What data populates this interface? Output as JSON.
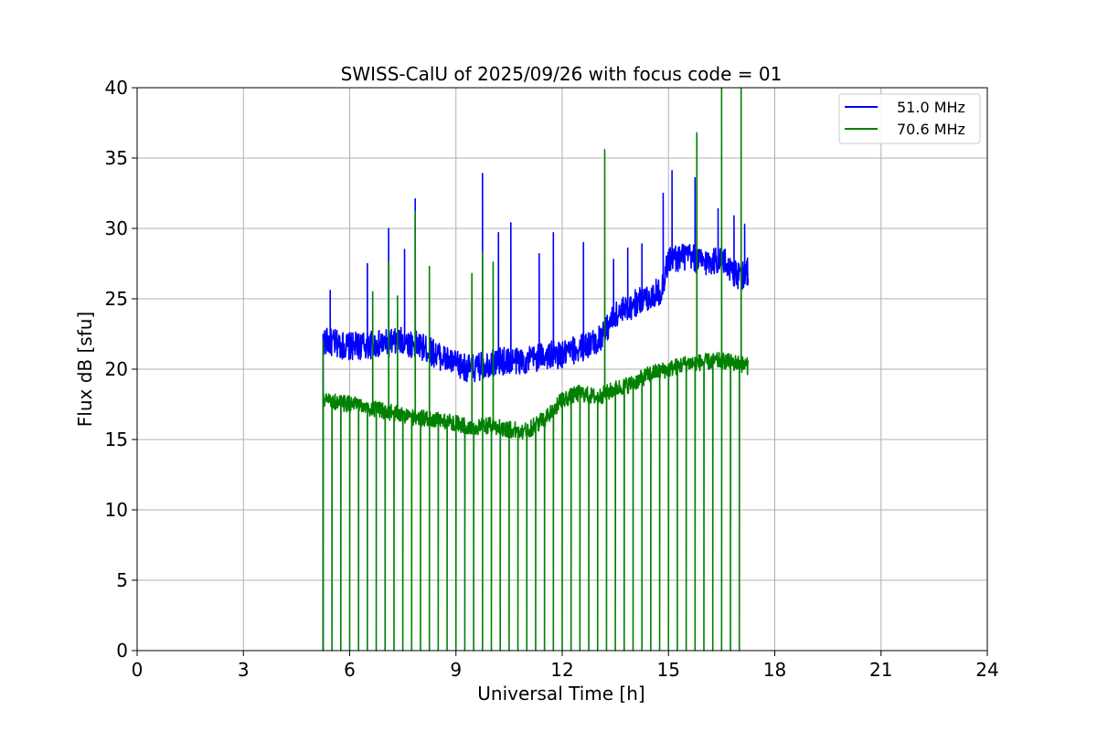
{
  "chart_data": {
    "type": "line",
    "title": "SWISS-CalU of 2025/09/26 with focus code = 01",
    "xlabel": "Universal Time [h]",
    "ylabel": "Flux dB [sfu]",
    "xlim": [
      0,
      24
    ],
    "ylim": [
      0,
      40
    ],
    "xticks": [
      0,
      3,
      6,
      9,
      12,
      15,
      18,
      21,
      24
    ],
    "yticks": [
      0,
      5,
      10,
      15,
      20,
      25,
      30,
      35,
      40
    ],
    "xtick_labels": [
      "0",
      "3",
      "6",
      "9",
      "12",
      "15",
      "18",
      "21",
      "24"
    ],
    "ytick_labels": [
      "0",
      "5",
      "10",
      "15",
      "20",
      "25",
      "30",
      "35",
      "40"
    ],
    "grid": true,
    "legend_position": "top-right",
    "series": [
      {
        "name": "51.0 MHz",
        "color": "#0000ff",
        "baseline": [
          [
            5.25,
            22.0
          ],
          [
            6.0,
            21.6
          ],
          [
            7.0,
            21.8
          ],
          [
            7.5,
            22.0
          ],
          [
            8.0,
            21.6
          ],
          [
            8.5,
            21.0
          ],
          [
            9.0,
            20.3
          ],
          [
            9.5,
            20.0
          ],
          [
            10.0,
            20.5
          ],
          [
            10.5,
            20.6
          ],
          [
            11.0,
            20.6
          ],
          [
            11.5,
            21.0
          ],
          [
            12.0,
            21.0
          ],
          [
            12.5,
            21.5
          ],
          [
            13.0,
            22.0
          ],
          [
            13.5,
            23.8
          ],
          [
            14.0,
            24.6
          ],
          [
            14.5,
            25.2
          ],
          [
            14.8,
            25.6
          ],
          [
            15.0,
            27.8
          ],
          [
            15.5,
            28.0
          ],
          [
            16.0,
            27.6
          ],
          [
            16.5,
            27.8
          ],
          [
            17.0,
            26.5
          ],
          [
            17.25,
            27.0
          ]
        ],
        "noise": 1.0,
        "spikes": [
          [
            5.45,
            25.6
          ],
          [
            6.5,
            27.5
          ],
          [
            7.1,
            30.0
          ],
          [
            7.55,
            28.5
          ],
          [
            7.85,
            32.1
          ],
          [
            9.75,
            33.9
          ],
          [
            10.2,
            29.7
          ],
          [
            10.55,
            30.4
          ],
          [
            11.35,
            28.2
          ],
          [
            11.75,
            29.7
          ],
          [
            12.6,
            29.0
          ],
          [
            13.45,
            27.8
          ],
          [
            13.85,
            28.6
          ],
          [
            14.25,
            28.9
          ],
          [
            14.85,
            32.5
          ],
          [
            15.1,
            34.1
          ],
          [
            15.75,
            33.6
          ],
          [
            16.4,
            31.4
          ],
          [
            16.85,
            30.9
          ],
          [
            17.15,
            30.3
          ]
        ]
      },
      {
        "name": "70.6 MHz",
        "color": "#008000",
        "baseline": [
          [
            5.25,
            17.8
          ],
          [
            6.0,
            17.5
          ],
          [
            7.0,
            17.0
          ],
          [
            8.0,
            16.5
          ],
          [
            9.0,
            16.2
          ],
          [
            9.5,
            15.8
          ],
          [
            10.0,
            16.0
          ],
          [
            10.5,
            15.7
          ],
          [
            11.0,
            15.6
          ],
          [
            11.5,
            16.5
          ],
          [
            12.0,
            17.8
          ],
          [
            12.5,
            18.3
          ],
          [
            13.0,
            18.0
          ],
          [
            13.5,
            18.6
          ],
          [
            14.0,
            19.0
          ],
          [
            14.5,
            19.7
          ],
          [
            15.0,
            20.0
          ],
          [
            15.5,
            20.4
          ],
          [
            16.0,
            20.5
          ],
          [
            16.5,
            20.6
          ],
          [
            17.0,
            20.4
          ],
          [
            17.25,
            20.2
          ]
        ],
        "noise": 0.6,
        "dropouts": [
          5.25,
          5.5,
          5.75,
          6.0,
          6.25,
          6.5,
          6.75,
          7.0,
          7.25,
          7.5,
          7.75,
          8.0,
          8.25,
          8.5,
          8.75,
          9.0,
          9.25,
          9.5,
          9.75,
          10.0,
          10.25,
          10.5,
          10.75,
          11.0,
          11.25,
          11.5,
          11.75,
          12.0,
          12.25,
          12.5,
          12.75,
          13.0,
          13.25,
          13.5,
          13.75,
          14.0,
          14.25,
          14.5,
          14.75,
          15.0,
          15.25,
          15.5,
          15.75,
          16.0,
          16.25,
          16.5,
          16.75,
          17.0
        ],
        "spikes": [
          [
            5.25,
            22.0
          ],
          [
            6.65,
            25.5
          ],
          [
            7.1,
            27.6
          ],
          [
            7.35,
            25.2
          ],
          [
            7.85,
            31.2
          ],
          [
            8.25,
            27.3
          ],
          [
            9.45,
            26.8
          ],
          [
            9.75,
            28.3
          ],
          [
            10.05,
            27.6
          ],
          [
            13.2,
            35.6
          ],
          [
            15.8,
            36.8
          ],
          [
            16.5,
            40.0
          ],
          [
            17.05,
            40.0
          ]
        ]
      }
    ]
  }
}
